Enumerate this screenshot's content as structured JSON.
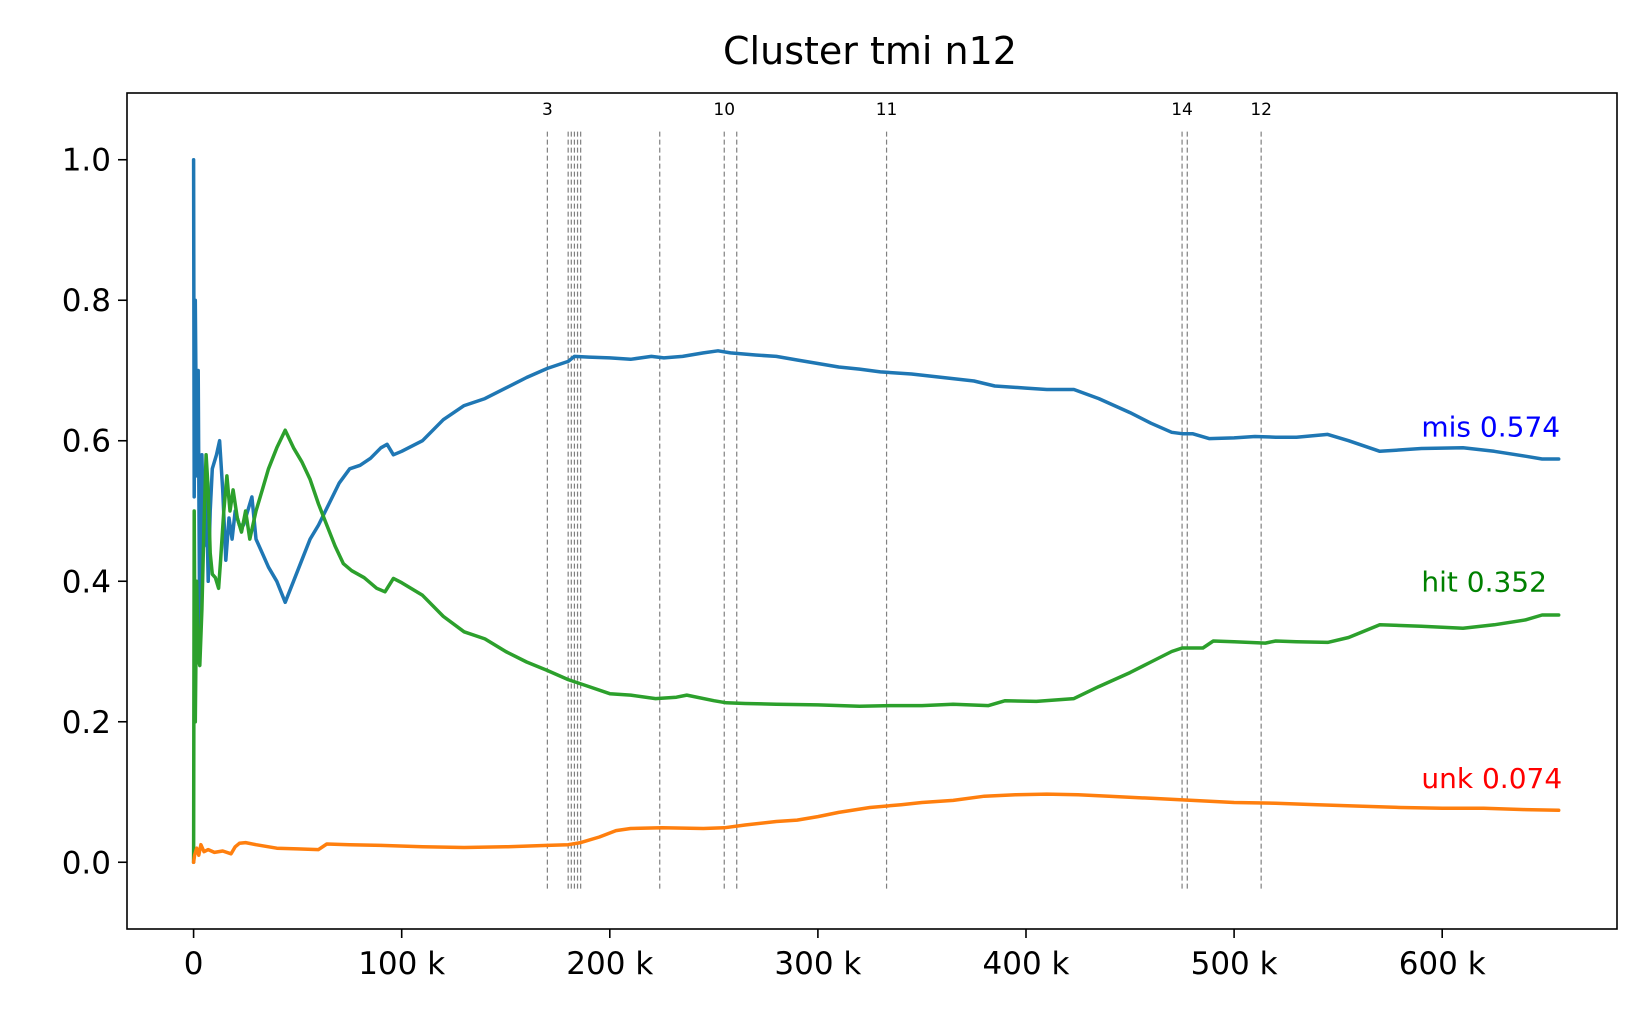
{
  "chart_data": {
    "type": "line",
    "title": "Cluster tmi n12",
    "xlabel": "",
    "ylabel": "",
    "xlim": [
      -32000,
      684000
    ],
    "ylim": [
      -0.095,
      1.095
    ],
    "x_ticks": [
      0,
      100000,
      200000,
      300000,
      400000,
      500000,
      600000
    ],
    "x_tick_labels": [
      "0",
      "100 k",
      "200 k",
      "300 k",
      "400 k",
      "500 k",
      "600 k"
    ],
    "y_ticks": [
      0.0,
      0.2,
      0.4,
      0.6,
      0.8,
      1.0
    ],
    "y_tick_labels": [
      "0.0",
      "0.2",
      "0.4",
      "0.6",
      "0.8",
      "1.0"
    ],
    "grid": false,
    "series": [
      {
        "key": "mis",
        "color": "#1f77b4",
        "points": [
          [
            0,
            1.0
          ],
          [
            300,
            0.52
          ],
          [
            800,
            0.8
          ],
          [
            1500,
            0.55
          ],
          [
            2200,
            0.7
          ],
          [
            3000,
            0.3
          ],
          [
            4000,
            0.58
          ],
          [
            5000,
            0.45
          ],
          [
            6000,
            0.55
          ],
          [
            7000,
            0.4
          ],
          [
            8000,
            0.5
          ],
          [
            9000,
            0.56
          ],
          [
            11000,
            0.58
          ],
          [
            12500,
            0.6
          ],
          [
            14000,
            0.53
          ],
          [
            15500,
            0.43
          ],
          [
            17000,
            0.49
          ],
          [
            18500,
            0.46
          ],
          [
            20000,
            0.5
          ],
          [
            22000,
            0.48
          ],
          [
            24000,
            0.48
          ],
          [
            26000,
            0.5
          ],
          [
            28000,
            0.52
          ],
          [
            30000,
            0.46
          ],
          [
            33000,
            0.44
          ],
          [
            36000,
            0.42
          ],
          [
            40000,
            0.4
          ],
          [
            44000,
            0.37
          ],
          [
            48000,
            0.4
          ],
          [
            52000,
            0.43
          ],
          [
            56000,
            0.46
          ],
          [
            60000,
            0.48
          ],
          [
            65000,
            0.51
          ],
          [
            70000,
            0.54
          ],
          [
            75000,
            0.56
          ],
          [
            80000,
            0.565
          ],
          [
            85000,
            0.575
          ],
          [
            90000,
            0.59
          ],
          [
            93000,
            0.595
          ],
          [
            96000,
            0.58
          ],
          [
            100000,
            0.585
          ],
          [
            110000,
            0.6
          ],
          [
            120000,
            0.63
          ],
          [
            130000,
            0.65
          ],
          [
            140000,
            0.66
          ],
          [
            150000,
            0.675
          ],
          [
            160000,
            0.69
          ],
          [
            170000,
            0.703
          ],
          [
            180000,
            0.713
          ],
          [
            183000,
            0.72
          ],
          [
            190000,
            0.719
          ],
          [
            200000,
            0.718
          ],
          [
            210000,
            0.716
          ],
          [
            220000,
            0.72
          ],
          [
            226000,
            0.718
          ],
          [
            235000,
            0.72
          ],
          [
            245000,
            0.725
          ],
          [
            252000,
            0.728
          ],
          [
            258000,
            0.725
          ],
          [
            270000,
            0.722
          ],
          [
            280000,
            0.72
          ],
          [
            290000,
            0.715
          ],
          [
            300000,
            0.71
          ],
          [
            310000,
            0.705
          ],
          [
            320000,
            0.702
          ],
          [
            330000,
            0.698
          ],
          [
            345000,
            0.695
          ],
          [
            360000,
            0.69
          ],
          [
            375000,
            0.685
          ],
          [
            385000,
            0.678
          ],
          [
            400000,
            0.675
          ],
          [
            410000,
            0.673
          ],
          [
            423000,
            0.673
          ],
          [
            435000,
            0.66
          ],
          [
            450000,
            0.64
          ],
          [
            460000,
            0.625
          ],
          [
            470000,
            0.612
          ],
          [
            475000,
            0.61
          ],
          [
            480000,
            0.61
          ],
          [
            488000,
            0.603
          ],
          [
            500000,
            0.604
          ],
          [
            510000,
            0.606
          ],
          [
            520000,
            0.605
          ],
          [
            530000,
            0.605
          ],
          [
            545000,
            0.609
          ],
          [
            555000,
            0.6
          ],
          [
            570000,
            0.585
          ],
          [
            590000,
            0.589
          ],
          [
            610000,
            0.59
          ],
          [
            625000,
            0.585
          ],
          [
            640000,
            0.578
          ],
          [
            648000,
            0.574
          ],
          [
            656000,
            0.574
          ]
        ]
      },
      {
        "key": "hit",
        "color": "#2ca02c",
        "points": [
          [
            0,
            0.0
          ],
          [
            300,
            0.5
          ],
          [
            800,
            0.2
          ],
          [
            1500,
            0.4
          ],
          [
            2200,
            0.29
          ],
          [
            3000,
            0.28
          ],
          [
            4000,
            0.36
          ],
          [
            5000,
            0.48
          ],
          [
            6000,
            0.58
          ],
          [
            7000,
            0.53
          ],
          [
            8000,
            0.44
          ],
          [
            9000,
            0.41
          ],
          [
            10500,
            0.405
          ],
          [
            12000,
            0.39
          ],
          [
            13000,
            0.43
          ],
          [
            14500,
            0.5
          ],
          [
            16000,
            0.55
          ],
          [
            17500,
            0.5
          ],
          [
            19000,
            0.53
          ],
          [
            21000,
            0.49
          ],
          [
            23000,
            0.47
          ],
          [
            25000,
            0.5
          ],
          [
            27000,
            0.46
          ],
          [
            30000,
            0.5
          ],
          [
            33000,
            0.53
          ],
          [
            36000,
            0.56
          ],
          [
            40000,
            0.59
          ],
          [
            44000,
            0.615
          ],
          [
            48000,
            0.59
          ],
          [
            52000,
            0.57
          ],
          [
            56000,
            0.545
          ],
          [
            60000,
            0.51
          ],
          [
            64000,
            0.48
          ],
          [
            68000,
            0.45
          ],
          [
            72000,
            0.425
          ],
          [
            76000,
            0.415
          ],
          [
            82000,
            0.405
          ],
          [
            88000,
            0.39
          ],
          [
            92000,
            0.385
          ],
          [
            96000,
            0.404
          ],
          [
            100000,
            0.398
          ],
          [
            110000,
            0.38
          ],
          [
            120000,
            0.35
          ],
          [
            130000,
            0.328
          ],
          [
            140000,
            0.318
          ],
          [
            150000,
            0.3
          ],
          [
            160000,
            0.285
          ],
          [
            170000,
            0.273
          ],
          [
            180000,
            0.26
          ],
          [
            190000,
            0.25
          ],
          [
            200000,
            0.24
          ],
          [
            210000,
            0.238
          ],
          [
            222000,
            0.233
          ],
          [
            232000,
            0.235
          ],
          [
            237000,
            0.238
          ],
          [
            250000,
            0.23
          ],
          [
            256000,
            0.227
          ],
          [
            265000,
            0.226
          ],
          [
            280000,
            0.225
          ],
          [
            300000,
            0.224
          ],
          [
            320000,
            0.222
          ],
          [
            335000,
            0.223
          ],
          [
            350000,
            0.223
          ],
          [
            365000,
            0.225
          ],
          [
            382000,
            0.223
          ],
          [
            390000,
            0.23
          ],
          [
            405000,
            0.229
          ],
          [
            423000,
            0.233
          ],
          [
            435000,
            0.25
          ],
          [
            450000,
            0.27
          ],
          [
            460000,
            0.285
          ],
          [
            470000,
            0.3
          ],
          [
            475000,
            0.305
          ],
          [
            485000,
            0.305
          ],
          [
            490000,
            0.315
          ],
          [
            500000,
            0.314
          ],
          [
            515000,
            0.312
          ],
          [
            520000,
            0.315
          ],
          [
            530000,
            0.314
          ],
          [
            545000,
            0.313
          ],
          [
            555000,
            0.32
          ],
          [
            570000,
            0.338
          ],
          [
            590000,
            0.336
          ],
          [
            610000,
            0.333
          ],
          [
            625000,
            0.338
          ],
          [
            640000,
            0.345
          ],
          [
            648000,
            0.352
          ],
          [
            656000,
            0.352
          ]
        ]
      },
      {
        "key": "unk",
        "color": "#ff7f0e",
        "points": [
          [
            0,
            0.0
          ],
          [
            500,
            0.01
          ],
          [
            1500,
            0.02
          ],
          [
            2500,
            0.01
          ],
          [
            3500,
            0.025
          ],
          [
            5000,
            0.015
          ],
          [
            7000,
            0.018
          ],
          [
            10000,
            0.014
          ],
          [
            14000,
            0.016
          ],
          [
            18000,
            0.012
          ],
          [
            20000,
            0.022
          ],
          [
            22000,
            0.027
          ],
          [
            25000,
            0.028
          ],
          [
            30000,
            0.025
          ],
          [
            40000,
            0.02
          ],
          [
            50000,
            0.019
          ],
          [
            60000,
            0.018
          ],
          [
            64000,
            0.026
          ],
          [
            75000,
            0.025
          ],
          [
            90000,
            0.024
          ],
          [
            110000,
            0.022
          ],
          [
            130000,
            0.021
          ],
          [
            150000,
            0.022
          ],
          [
            170000,
            0.024
          ],
          [
            180000,
            0.025
          ],
          [
            186000,
            0.028
          ],
          [
            195000,
            0.036
          ],
          [
            203000,
            0.045
          ],
          [
            210000,
            0.048
          ],
          [
            225000,
            0.049
          ],
          [
            245000,
            0.048
          ],
          [
            255000,
            0.049
          ],
          [
            265000,
            0.053
          ],
          [
            280000,
            0.058
          ],
          [
            290000,
            0.06
          ],
          [
            300000,
            0.065
          ],
          [
            310000,
            0.071
          ],
          [
            325000,
            0.078
          ],
          [
            340000,
            0.082
          ],
          [
            350000,
            0.085
          ],
          [
            365000,
            0.088
          ],
          [
            380000,
            0.094
          ],
          [
            395000,
            0.096
          ],
          [
            410000,
            0.097
          ],
          [
            425000,
            0.096
          ],
          [
            440000,
            0.094
          ],
          [
            460000,
            0.091
          ],
          [
            480000,
            0.088
          ],
          [
            500000,
            0.085
          ],
          [
            520000,
            0.084
          ],
          [
            540000,
            0.082
          ],
          [
            560000,
            0.08
          ],
          [
            580000,
            0.078
          ],
          [
            600000,
            0.077
          ],
          [
            620000,
            0.077
          ],
          [
            640000,
            0.075
          ],
          [
            656000,
            0.074
          ]
        ]
      }
    ],
    "annotations": [
      {
        "label": "mis 0.574",
        "color": "#0000ff",
        "x": 590000,
        "y": 0.62
      },
      {
        "label": "hit 0.352",
        "color": "#008000",
        "x": 590000,
        "y": 0.4
      },
      {
        "label": "unk 0.074",
        "color": "#ff0000",
        "x": 590000,
        "y": 0.12
      }
    ],
    "vertical_markers": {
      "color": "#808080",
      "style": "dashed",
      "y_range": [
        -0.04,
        1.04
      ],
      "lines": [
        {
          "x": 170000,
          "label": "3"
        },
        {
          "x": 180000,
          "label": ""
        },
        {
          "x": 181500,
          "label": ""
        },
        {
          "x": 183000,
          "label": ""
        },
        {
          "x": 184500,
          "label": ""
        },
        {
          "x": 186000,
          "label": ""
        },
        {
          "x": 224000,
          "label": ""
        },
        {
          "x": 255000,
          "label": "10"
        },
        {
          "x": 261000,
          "label": ""
        },
        {
          "x": 333000,
          "label": "11"
        },
        {
          "x": 475000,
          "label": "14"
        },
        {
          "x": 477500,
          "label": ""
        },
        {
          "x": 513000,
          "label": "12"
        }
      ]
    }
  }
}
